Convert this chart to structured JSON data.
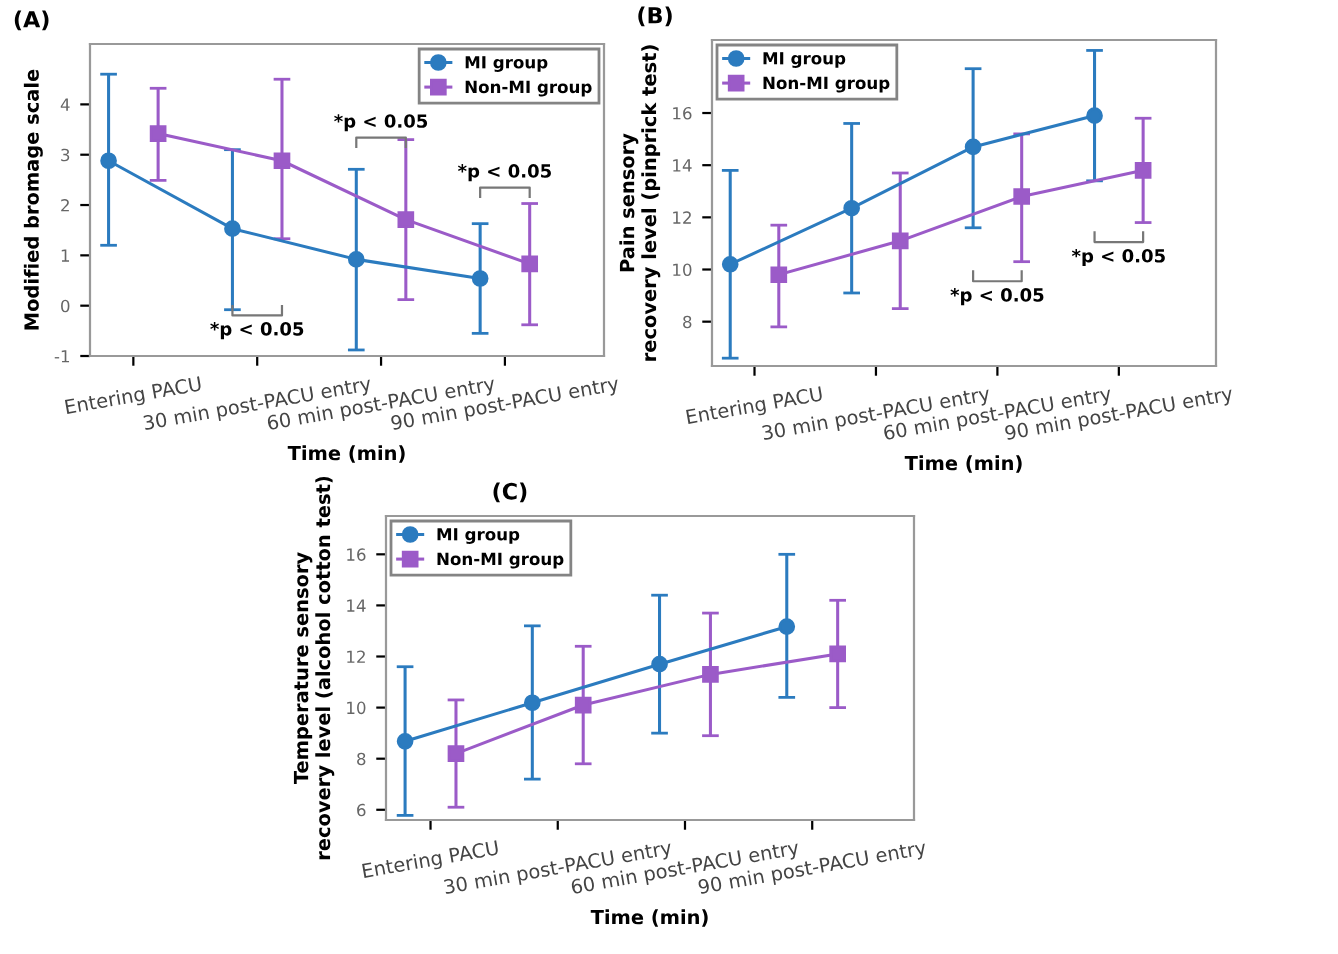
{
  "chart_data": [
    {
      "type": "line",
      "title": "(A)",
      "xlabel": "Time (min)",
      "ylabel": "Modified bromage scale",
      "categories": [
        "Entering PACU",
        "30 min post-PACU entry",
        "60 min post-PACU entry",
        "90 min post-PACU entry"
      ],
      "series": [
        {
          "name": "MI group",
          "color": "#2b7bbf",
          "marker": "circle",
          "values": [
            2.88,
            1.53,
            0.92,
            0.54
          ],
          "errors": [
            [
              1.2,
              4.6
            ],
            [
              -0.08,
              3.1
            ],
            [
              -0.88,
              2.71
            ],
            [
              -0.55,
              1.63
            ]
          ]
        },
        {
          "name": "Non-MI group",
          "color": "#9b5bc8",
          "marker": "square",
          "values": [
            3.42,
            2.88,
            1.71,
            0.83
          ],
          "errors": [
            [
              2.49,
              4.32
            ],
            [
              1.33,
              4.5
            ],
            [
              0.12,
              3.3
            ],
            [
              -0.38,
              2.03
            ]
          ]
        }
      ],
      "ylim": [
        -1,
        5.2
      ],
      "yticks": [
        -1,
        0,
        1,
        2,
        3,
        4
      ],
      "legend": "top right",
      "grid": false,
      "line_style": "solid",
      "annotations": [
        "*p < 0.05",
        "*p < 0.05",
        "*p < 0.05"
      ]
    },
    {
      "type": "line",
      "title": "(B)",
      "xlabel": "Time (min)",
      "ylabel": "Pain sensory\nrecovery level (pinprick test)",
      "categories": [
        "Entering PACU",
        "30 min post-PACU entry",
        "60 min post-PACU entry",
        "90 min post-PACU entry"
      ],
      "series": [
        {
          "name": "MI group",
          "color": "#2b7bbf",
          "marker": "circle",
          "values": [
            10.2,
            12.35,
            14.7,
            15.9
          ],
          "errors": [
            [
              6.6,
              13.8
            ],
            [
              9.1,
              15.6
            ],
            [
              11.6,
              17.7
            ],
            [
              13.4,
              18.4
            ]
          ]
        },
        {
          "name": "Non-MI group",
          "color": "#9b5bc8",
          "marker": "square",
          "values": [
            9.8,
            11.1,
            12.8,
            13.8
          ],
          "errors": [
            [
              7.8,
              11.7
            ],
            [
              8.5,
              13.7
            ],
            [
              10.3,
              15.2
            ],
            [
              11.8,
              15.8
            ]
          ]
        }
      ],
      "ylim": [
        6.3,
        18.8
      ],
      "yticks": [
        8,
        10,
        12,
        14,
        16
      ],
      "legend": "top left",
      "grid": false,
      "line_style": "solid",
      "annotations": [
        "*p < 0.05",
        "*p < 0.05"
      ]
    },
    {
      "type": "line",
      "title": "(C)",
      "xlabel": "Time (min)",
      "ylabel": "Temperature sensory\nrecovery level (alcohol cotton test)",
      "categories": [
        "Entering PACU",
        "30 min post-PACU entry",
        "60 min post-PACU entry",
        "90 min post-PACU entry"
      ],
      "series": [
        {
          "name": "MI group",
          "color": "#2b7bbf",
          "marker": "circle",
          "values": [
            8.68,
            10.19,
            11.7,
            13.17
          ],
          "errors": [
            [
              5.78,
              11.6
            ],
            [
              7.2,
              13.2
            ],
            [
              9.0,
              14.4
            ],
            [
              10.4,
              16.0
            ]
          ]
        },
        {
          "name": "Non-MI group",
          "color": "#9b5bc8",
          "marker": "square",
          "values": [
            8.2,
            10.1,
            11.3,
            12.1
          ],
          "errors": [
            [
              6.1,
              10.3
            ],
            [
              7.8,
              12.4
            ],
            [
              8.9,
              13.7
            ],
            [
              10.0,
              14.2
            ]
          ]
        }
      ],
      "ylim": [
        5.6,
        17.5
      ],
      "yticks": [
        6,
        8,
        10,
        12,
        14,
        16
      ],
      "legend": "top left",
      "grid": false,
      "line_style": "solid"
    }
  ]
}
